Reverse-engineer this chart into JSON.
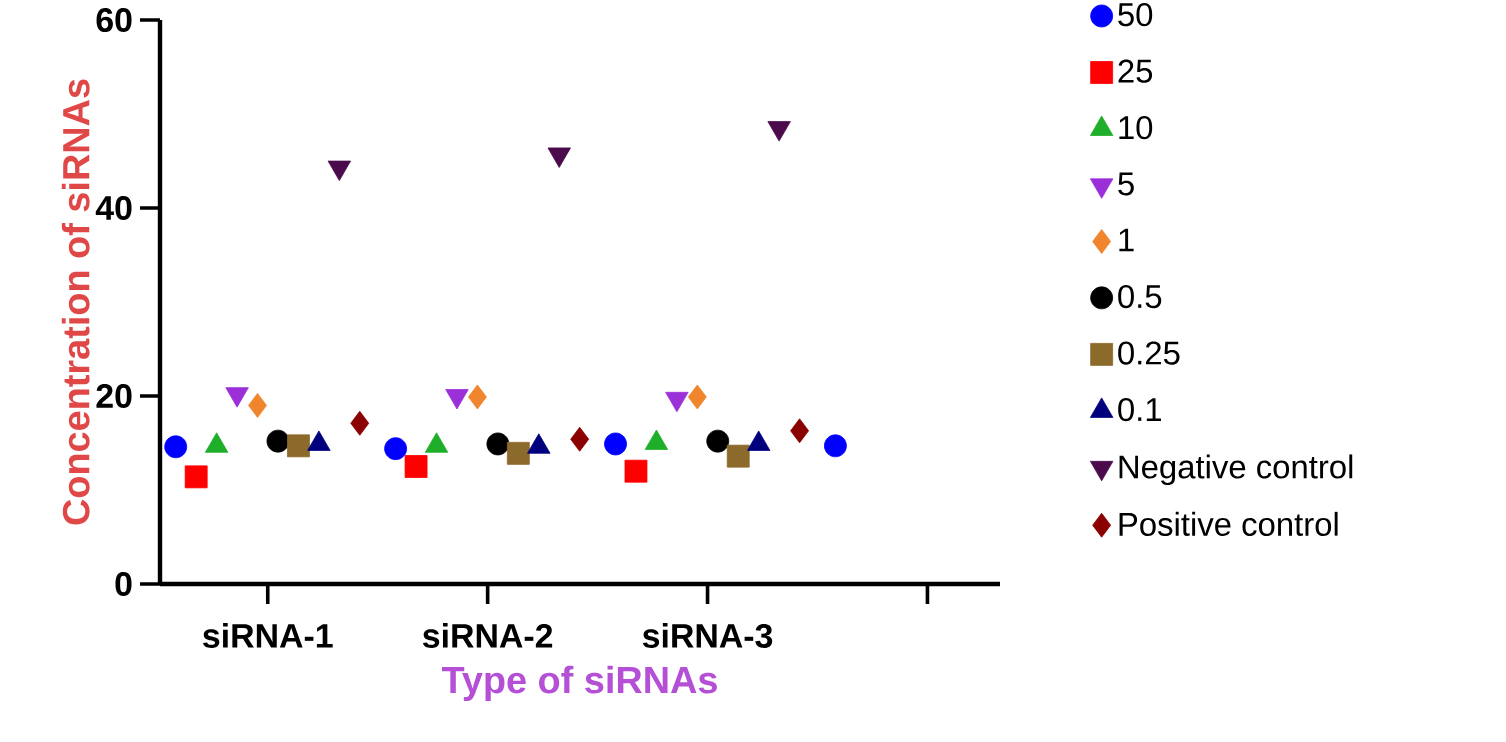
{
  "chart_data": {
    "type": "scatter",
    "xlabel": "Type of siRNAs",
    "ylabel": "Concentration of siRNAs",
    "categories": [
      "siRNA-1",
      "siRNA-2",
      "siRNA-3",
      null
    ],
    "ylim": [
      0,
      60
    ],
    "yticks": [
      0,
      20,
      40,
      60
    ],
    "legend": "right",
    "grid": false,
    "series": [
      {
        "name": "50",
        "color": "#0000ff",
        "marker": "circle",
        "values": [
          14.6,
          14.4,
          14.9,
          14.7
        ]
      },
      {
        "name": "25",
        "color": "#ff0000",
        "marker": "square",
        "values": [
          11.4,
          12.5,
          12.0,
          null
        ]
      },
      {
        "name": "10",
        "color": "#1fae2a",
        "marker": "triangle",
        "values": [
          14.7,
          14.7,
          15.0,
          null
        ]
      },
      {
        "name": "5",
        "color": "#9b30d9",
        "marker": "triangle-down",
        "values": [
          20.2,
          20.0,
          19.7,
          null
        ]
      },
      {
        "name": "1",
        "color": "#f0852d",
        "marker": "diamond",
        "values": [
          19.0,
          19.9,
          19.9,
          null
        ]
      },
      {
        "name": "0.5",
        "color": "#000000",
        "marker": "circle",
        "values": [
          15.2,
          14.9,
          15.2,
          null
        ]
      },
      {
        "name": "0.25",
        "color": "#8c6a2b",
        "marker": "square",
        "values": [
          14.7,
          13.9,
          13.6,
          null
        ]
      },
      {
        "name": "0.1",
        "color": "#00007f",
        "marker": "triangle",
        "values": [
          14.9,
          14.6,
          14.9,
          null
        ]
      },
      {
        "name": "Negative control",
        "color": "#4b0a4b",
        "marker": "triangle-down",
        "values": [
          44.3,
          45.7,
          48.5,
          null
        ]
      },
      {
        "name": "Positive control",
        "color": "#8b0000",
        "marker": "diamond",
        "values": [
          17.1,
          15.4,
          16.3,
          null
        ]
      }
    ]
  }
}
